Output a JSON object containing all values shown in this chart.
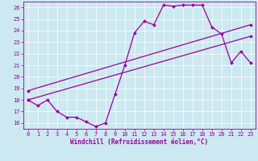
{
  "xlabel": "Windchill (Refroidissement éolien,°C)",
  "background_color": "#cce8f0",
  "line_color": "#990099",
  "grid_color": "#ffffff",
  "xlim": [
    -0.5,
    23.5
  ],
  "ylim": [
    15.5,
    26.5
  ],
  "xticks": [
    0,
    1,
    2,
    3,
    4,
    5,
    6,
    7,
    8,
    9,
    10,
    11,
    12,
    13,
    14,
    15,
    16,
    17,
    18,
    19,
    20,
    21,
    22,
    23
  ],
  "yticks": [
    16,
    17,
    18,
    19,
    20,
    21,
    22,
    23,
    24,
    25,
    26
  ],
  "series1_x": [
    0,
    1,
    2,
    3,
    4,
    5,
    6,
    7,
    8,
    9,
    10,
    11,
    12,
    13,
    14,
    15,
    16,
    17,
    18,
    19,
    20,
    21,
    22,
    23
  ],
  "series1_y": [
    18.0,
    17.5,
    18.0,
    17.0,
    16.5,
    16.5,
    16.1,
    15.7,
    16.0,
    18.5,
    21.0,
    23.8,
    24.8,
    24.5,
    26.2,
    26.1,
    26.2,
    26.2,
    26.2,
    24.3,
    23.7,
    21.2,
    22.2,
    21.2
  ],
  "series2_x": [
    0,
    23
  ],
  "series2_y": [
    18.0,
    23.5
  ],
  "series3_x": [
    0,
    23
  ],
  "series3_y": [
    18.8,
    24.5
  ]
}
